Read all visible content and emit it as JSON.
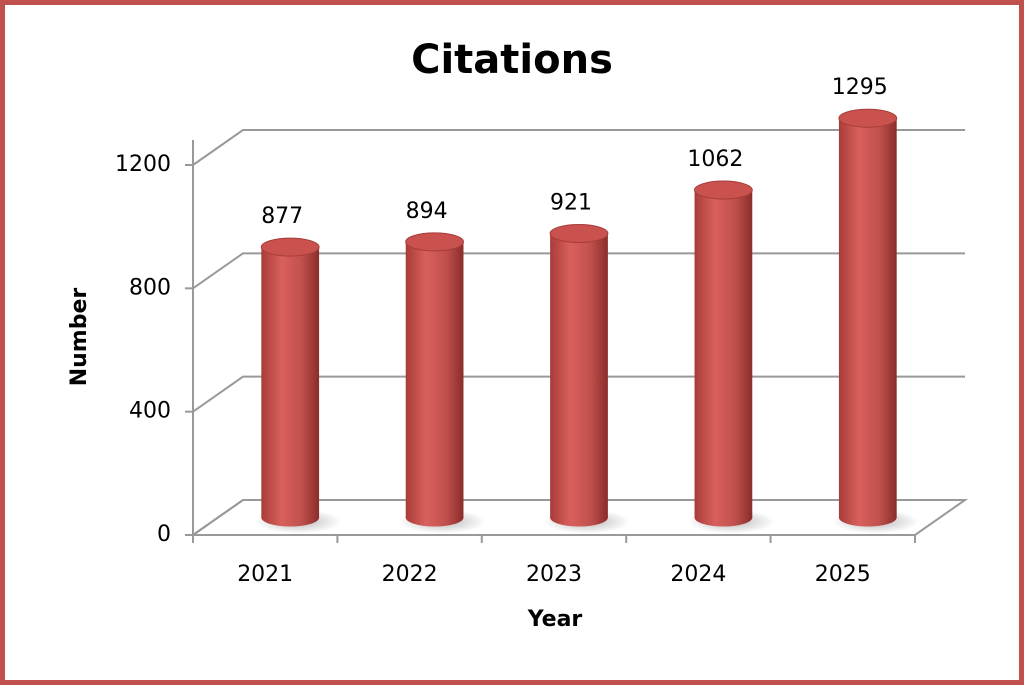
{
  "chart_data": {
    "type": "bar",
    "title": "Citations",
    "x_label": "Year",
    "y_label": "Number",
    "categories": [
      "2021",
      "2022",
      "2023",
      "2024",
      "2025"
    ],
    "values": [
      877,
      894,
      921,
      1062,
      1295
    ],
    "color": "#c0504d",
    "ylim": [
      0,
      1200
    ],
    "yticks": [
      0,
      400,
      800,
      1200
    ],
    "grid": true
  }
}
